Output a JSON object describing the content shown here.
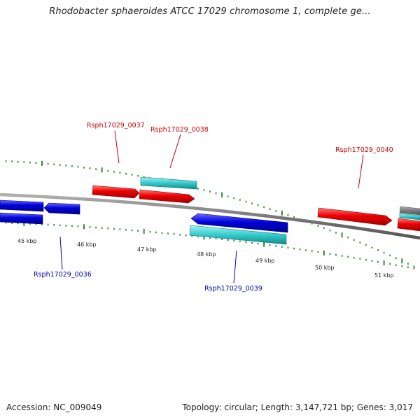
{
  "title": "Rhodobacter sphaeroides ATCC 17029 chromosome 1, complete ge...",
  "footer": {
    "accession": "Accession: NC_009049",
    "summary": "Topology: circular; Length: 3,147,721 bp; Genes: 3,017"
  },
  "colors": {
    "forward_gene": "#ee0000",
    "reverse_gene": "#0000dd",
    "cds_feature": "#33cccc",
    "backbone": "#888888",
    "tick": "#1a7a1a",
    "forward_label": "#cc0000",
    "reverse_label": "#0000aa"
  },
  "kbp_labels": [
    "45 kbp",
    "46 kbp",
    "47 kbp",
    "48 kbp",
    "49 kbp",
    "50 kbp",
    "51 kbp"
  ],
  "gene_labels": [
    {
      "id": "Rsph17029_0036",
      "strand": "reverse"
    },
    {
      "id": "Rsph17029_0037",
      "strand": "forward"
    },
    {
      "id": "Rsph17029_0038",
      "strand": "forward"
    },
    {
      "id": "Rsph17029_0039",
      "strand": "reverse"
    },
    {
      "id": "Rsph17029_0040",
      "strand": "forward"
    }
  ]
}
